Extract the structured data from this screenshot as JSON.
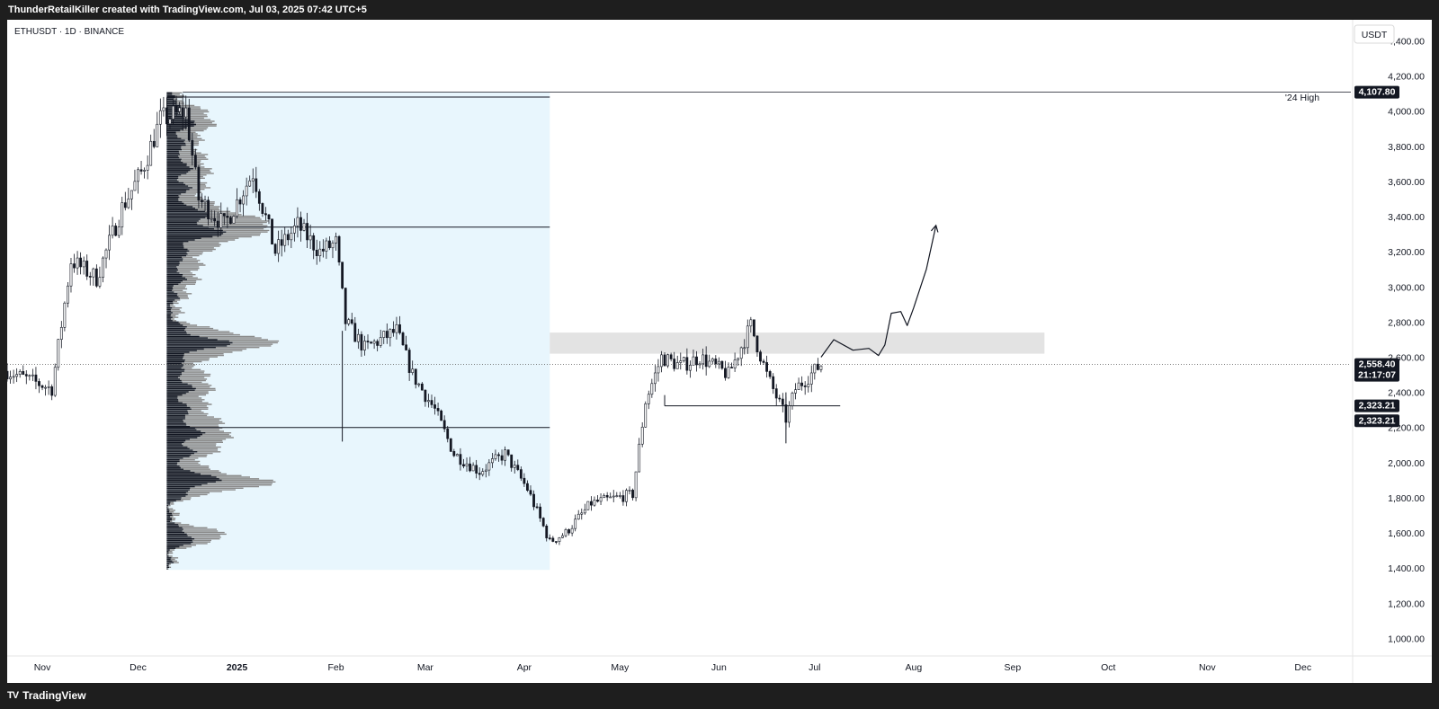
{
  "header": {
    "title": "ThunderRetailKiller created with TradingView.com, Jul 03, 2025 07:42 UTC+5"
  },
  "symbol_line": "ETHUSDT · 1D · BINANCE",
  "currency_label": "USDT",
  "footer": {
    "brand": "TradingView",
    "logo_mark": "TV"
  },
  "colors": {
    "candle": "#131722",
    "profile_dark": "#131722",
    "profile_gray": "#8a8a8a",
    "range_fill": "#e8f6fd",
    "zone_fill": "#e3e3e3",
    "tag_bg": "#131722"
  },
  "chart_data": {
    "type": "candlestick",
    "y_axis": {
      "ticks": [
        1000,
        1200,
        1400,
        1600,
        1800,
        2000,
        2200,
        2400,
        2600,
        2800,
        3000,
        3200,
        3400,
        3600,
        3800,
        4000,
        4200,
        4400
      ],
      "tick_labels": [
        "1,000.00",
        "1,200.00",
        "1,400.00",
        "1,600.00",
        "1,800.00",
        "2,000.00",
        "2,200.00",
        "2,400.00",
        "2,600.00",
        "2,800.00",
        "3,000.00",
        "3,200.00",
        "3,400.00",
        "3,600.00",
        "3,800.00",
        "4,000.00",
        "4,200.00",
        "4,400.00"
      ],
      "range": [
        900,
        4520
      ]
    },
    "x_axis": {
      "labels": [
        "Nov",
        "Dec",
        "2025",
        "Feb",
        "Mar",
        "Apr",
        "May",
        "Jun",
        "Jul",
        "Aug",
        "Sep",
        "Oct",
        "Nov",
        "Dec"
      ],
      "dates": [
        "2024-11-01",
        "2024-12-01",
        "2025-01-01",
        "2025-02-01",
        "2025-03-01",
        "2025-04-01",
        "2025-05-01",
        "2025-06-01",
        "2025-07-01",
        "2025-08-01",
        "2025-09-01",
        "2025-10-01",
        "2025-11-01",
        "2025-12-01"
      ],
      "range": [
        "2024-10-21",
        "2025-12-16"
      ]
    },
    "price_path": [
      [
        "2024-10-21",
        2520
      ],
      [
        "2024-11-04",
        2420
      ],
      [
        "2024-11-10",
        3150
      ],
      [
        "2024-11-18",
        3050
      ],
      [
        "2024-11-26",
        3450
      ],
      [
        "2024-12-02",
        3650
      ],
      [
        "2024-12-08",
        3950
      ],
      [
        "2024-12-16",
        4000
      ],
      [
        "2024-12-20",
        3500
      ],
      [
        "2024-12-28",
        3350
      ],
      [
        "2025-01-06",
        3650
      ],
      [
        "2025-01-13",
        3200
      ],
      [
        "2025-01-20",
        3350
      ],
      [
        "2025-01-27",
        3200
      ],
      [
        "2025-02-01",
        3250
      ],
      [
        "2025-02-04",
        2800
      ],
      [
        "2025-02-10",
        2650
      ],
      [
        "2025-02-20",
        2750
      ],
      [
        "2025-02-25",
        2500
      ],
      [
        "2025-03-04",
        2300
      ],
      [
        "2025-03-10",
        2050
      ],
      [
        "2025-03-18",
        1950
      ],
      [
        "2025-03-26",
        2050
      ],
      [
        "2025-04-02",
        1850
      ],
      [
        "2025-04-09",
        1550
      ],
      [
        "2025-04-14",
        1600
      ],
      [
        "2025-04-22",
        1770
      ],
      [
        "2025-05-05",
        1820
      ],
      [
        "2025-05-09",
        2350
      ],
      [
        "2025-05-14",
        2600
      ],
      [
        "2025-05-20",
        2550
      ],
      [
        "2025-05-26",
        2600
      ],
      [
        "2025-06-04",
        2500
      ],
      [
        "2025-06-11",
        2780
      ],
      [
        "2025-06-16",
        2500
      ],
      [
        "2025-06-22",
        2250
      ],
      [
        "2025-06-25",
        2420
      ],
      [
        "2025-07-03",
        2558.4
      ]
    ],
    "current_price": 2558.4,
    "current_price_label": "2,558.40",
    "countdown": "21:17:07",
    "level_labels": [
      "2,323.21",
      "2,323.21"
    ],
    "high_label": "4,107.80",
    "annotation": "'24 High",
    "horizontal_levels": [
      {
        "from": "2024-12-15",
        "to": "2025-12-16",
        "price": 4107.8,
        "label": "'24 High"
      },
      {
        "from": "2024-12-10",
        "to": "2025-04-09",
        "price": 4080
      },
      {
        "from": "2024-12-10",
        "to": "2025-04-09",
        "price": 3340
      },
      {
        "from": "2024-12-10",
        "to": "2025-04-09",
        "price": 2200
      },
      {
        "from": "2025-05-15",
        "to": "2025-07-09",
        "price": 2323.21
      }
    ],
    "volume_profile_range": {
      "from": "2024-12-10",
      "to": "2025-04-09",
      "low": 1390,
      "high": 4107.8
    },
    "supply_zone": {
      "from": "2025-04-09",
      "to": "2025-09-11",
      "low": 2620,
      "high": 2740
    },
    "projection": [
      [
        "2025-07-03",
        2600
      ],
      [
        "2025-07-07",
        2700
      ],
      [
        "2025-07-13",
        2640
      ],
      [
        "2025-07-18",
        2650
      ],
      [
        "2025-07-21",
        2610
      ],
      [
        "2025-07-23",
        2670
      ],
      [
        "2025-07-25",
        2850
      ],
      [
        "2025-07-28",
        2860
      ],
      [
        "2025-07-30",
        2780
      ],
      [
        "2025-08-01",
        2880
      ],
      [
        "2025-08-05",
        3100
      ],
      [
        "2025-08-08",
        3350
      ]
    ]
  }
}
